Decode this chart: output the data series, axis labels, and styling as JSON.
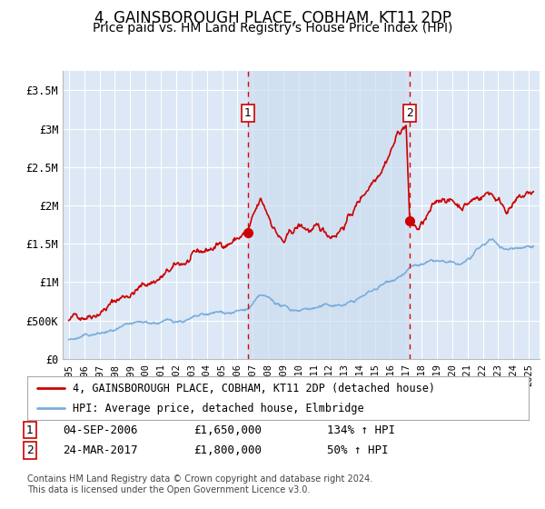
{
  "title": "4, GAINSBOROUGH PLACE, COBHAM, KT11 2DP",
  "subtitle": "Price paid vs. HM Land Registry's House Price Index (HPI)",
  "title_fontsize": 12,
  "subtitle_fontsize": 10,
  "ylim": [
    0,
    3750000
  ],
  "yticks": [
    0,
    500000,
    1000000,
    1500000,
    2000000,
    2500000,
    3000000,
    3500000
  ],
  "ytick_labels": [
    "£0",
    "£500K",
    "£1M",
    "£1.5M",
    "£2M",
    "£2.5M",
    "£3M",
    "£3.5M"
  ],
  "background_color": "#ffffff",
  "plot_bg_color": "#dce8f5",
  "grid_color": "#ffffff",
  "red_line_color": "#cc0000",
  "blue_line_color": "#7aaddb",
  "marker1_x": 2006.67,
  "marker1_y": 1650000,
  "marker2_x": 2017.23,
  "marker2_y": 1800000,
  "vline_color": "#dd0000",
  "shaded_region_color": "#ccddf0",
  "legend_red_label": "4, GAINSBOROUGH PLACE, COBHAM, KT11 2DP (detached house)",
  "legend_blue_label": "HPI: Average price, detached house, Elmbridge",
  "annotation1_label": "1",
  "annotation1_date": "04-SEP-2006",
  "annotation1_price": "£1,650,000",
  "annotation1_hpi": "134% ↑ HPI",
  "annotation2_label": "2",
  "annotation2_date": "24-MAR-2017",
  "annotation2_price": "£1,800,000",
  "annotation2_hpi": "50% ↑ HPI",
  "footer": "Contains HM Land Registry data © Crown copyright and database right 2024.\nThis data is licensed under the Open Government Licence v3.0.",
  "xtick_years": [
    1995,
    1996,
    1997,
    1998,
    1999,
    2000,
    2001,
    2002,
    2003,
    2004,
    2005,
    2006,
    2007,
    2008,
    2009,
    2010,
    2011,
    2012,
    2013,
    2014,
    2015,
    2016,
    2017,
    2018,
    2019,
    2020,
    2021,
    2022,
    2023,
    2024,
    2025
  ]
}
